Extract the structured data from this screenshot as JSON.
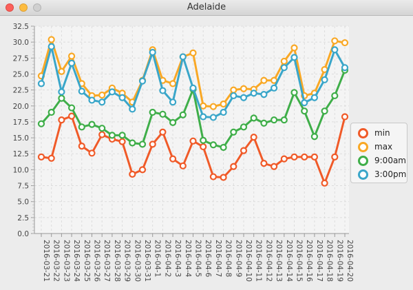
{
  "window": {
    "title": "Adelaide"
  },
  "legend": {
    "items": [
      {
        "name": "min",
        "color": "#f05a28"
      },
      {
        "name": "max",
        "color": "#f9a825"
      },
      {
        "name": "9:00am",
        "color": "#3fae49"
      },
      {
        "name": "3:00pm",
        "color": "#3aa6c9"
      }
    ]
  },
  "chart_data": {
    "type": "line",
    "title": "",
    "xlabel": "",
    "ylabel": "",
    "ylim": [
      0,
      32.5
    ],
    "y_ticks": [
      0.0,
      2.5,
      5.0,
      7.5,
      10.0,
      12.5,
      15.0,
      17.5,
      20.0,
      22.5,
      25.0,
      27.5,
      30.0,
      32.5
    ],
    "grid": true,
    "legend_position": "right",
    "categories": [
      "2016-03-21",
      "2016-03-22",
      "2016-03-23",
      "2016-03-24",
      "2016-03-25",
      "2016-03-26",
      "2016-03-27",
      "2016-03-28",
      "2016-03-29",
      "2016-03-30",
      "2016-03-31",
      "2016-04-1",
      "2016-04-2",
      "2016-04-3",
      "2016-04-4",
      "2016-04-5",
      "2016-04-6",
      "2016-04-7",
      "2016-04-8",
      "2016-04-9",
      "2016-04-10",
      "2016-04-11",
      "2016-04-12",
      "2016-04-13",
      "2016-04-14",
      "2016-04-15",
      "2016-04-16",
      "2016-04-17",
      "2016-04-18",
      "2016-04-19",
      "2016-04-20"
    ],
    "series": [
      {
        "name": "min",
        "color": "#f05a28",
        "values": [
          12.0,
          11.8,
          17.8,
          18.4,
          13.7,
          12.6,
          15.5,
          14.8,
          14.4,
          9.3,
          10.0,
          14.0,
          15.9,
          11.7,
          10.6,
          14.5,
          13.6,
          8.9,
          8.8,
          10.5,
          13.0,
          15.1,
          11.0,
          10.5,
          11.7,
          12.0,
          12.0,
          12.0,
          7.9,
          12.0,
          18.3
        ]
      },
      {
        "name": "max",
        "color": "#f9a825",
        "values": [
          24.7,
          30.4,
          25.4,
          27.8,
          23.5,
          21.6,
          21.7,
          22.8,
          22.0,
          20.6,
          24.0,
          28.8,
          24.0,
          23.5,
          27.7,
          28.3,
          20.0,
          19.9,
          20.3,
          22.5,
          22.7,
          22.6,
          24.0,
          24.0,
          27.0,
          29.1,
          21.6,
          22.0,
          25.7,
          30.2,
          29.9
        ]
      },
      {
        "name": "9:00am",
        "color": "#3fae49",
        "values": [
          17.2,
          19.0,
          21.2,
          19.7,
          16.7,
          17.1,
          16.5,
          15.4,
          15.4,
          14.2,
          14.0,
          19.0,
          18.7,
          17.4,
          18.6,
          22.6,
          14.6,
          13.9,
          13.5,
          15.9,
          16.7,
          18.1,
          17.3,
          17.8,
          17.8,
          22.1,
          19.2,
          15.2,
          19.2,
          21.6,
          25.6
        ]
      },
      {
        "name": "3:00pm",
        "color": "#3aa6c9",
        "values": [
          23.5,
          29.3,
          22.2,
          26.7,
          22.3,
          20.9,
          20.6,
          22.2,
          21.3,
          19.5,
          23.9,
          28.4,
          22.4,
          20.6,
          27.7,
          22.8,
          18.3,
          18.2,
          19.0,
          21.6,
          21.3,
          22.0,
          21.8,
          22.8,
          26.0,
          27.6,
          20.5,
          21.3,
          24.1,
          28.8,
          26.0
        ]
      }
    ]
  }
}
